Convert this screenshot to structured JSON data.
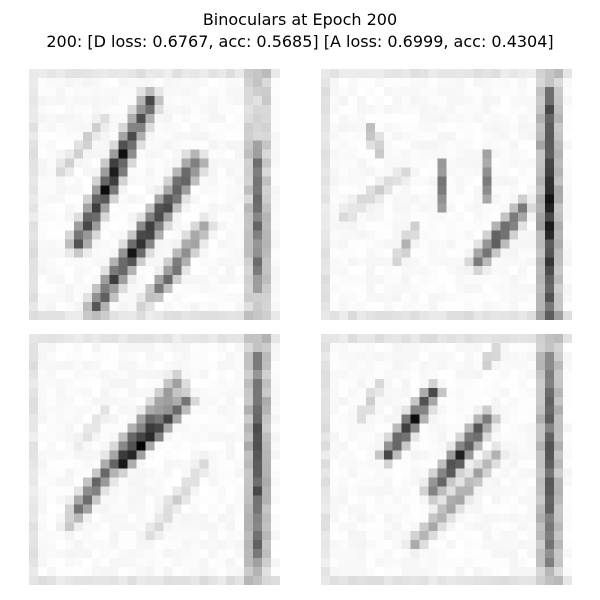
{
  "figure": {
    "title": "Binoculars at Epoch 200",
    "subtitle": "200: [D loss: 0.6767, acc: 0.5685]  [A loss: 0.6999, acc: 0.4304]"
  },
  "panels": [
    {
      "name": "generated-sample-1",
      "content": "grayscale generated image of diagonal dark strokes"
    },
    {
      "name": "generated-sample-2",
      "content": "grayscale generated image of diagonal dark strokes"
    },
    {
      "name": "generated-sample-3",
      "content": "grayscale generated image of diagonal dark strokes"
    },
    {
      "name": "generated-sample-4",
      "content": "grayscale generated image of diagonal dark strokes"
    }
  ]
}
